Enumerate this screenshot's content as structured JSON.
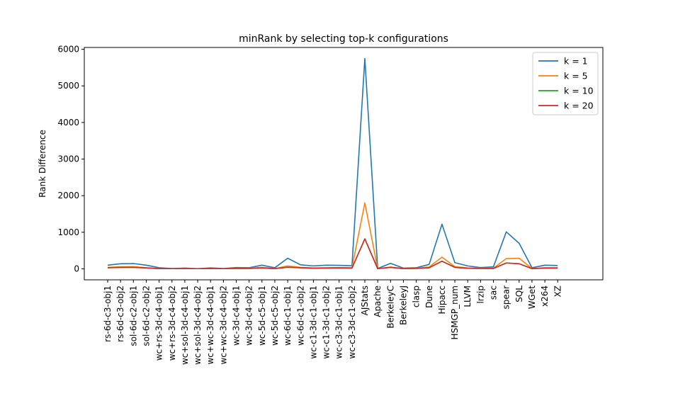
{
  "chart_data": {
    "type": "line",
    "title": "minRank by selecting top-k configurations",
    "xlabel": "",
    "ylabel": "Rank Difference",
    "ylim": [
      -300,
      6050
    ],
    "yticks": [
      0,
      1000,
      2000,
      3000,
      4000,
      5000,
      6000
    ],
    "grid": false,
    "legend_position": "top-right",
    "categories": [
      "rs-6d-c3-obj1",
      "rs-6d-c3-obj2",
      "sol-6d-c2-obj1",
      "sol-6d-c2-obj2",
      "wc+rs-3d-c4-obj1",
      "wc+rs-3d-c4-obj2",
      "wc+sol-3d-c4-obj1",
      "wc+sol-3d-c4-obj2",
      "wc+wc-3d-c4-obj1",
      "wc+wc-3d-c4-obj2",
      "wc-3d-c4-obj1",
      "wc-3d-c4-obj2",
      "wc-5d-c5-obj1",
      "wc-5d-c5-obj2",
      "wc-6d-c1-obj1",
      "wc-6d-c1-obj2",
      "wc-c1-3d-c1-obj1",
      "wc-c1-3d-c1-obj2",
      "wc-c3-3d-c1-obj1",
      "wc-c3-3d-c1-obj2",
      "AJStats",
      "Apache",
      "BerkeleyC",
      "BerkeleyJ",
      "clasp",
      "Dune",
      "Hipacc",
      "HSMGP_num",
      "LLVM",
      "lrzip",
      "sac",
      "spear",
      "SQL",
      "WGet",
      "x264",
      "XZ"
    ],
    "series": [
      {
        "name": "k = 1",
        "color": "#1f77b4",
        "values": [
          100,
          140,
          145,
          100,
          30,
          10,
          20,
          5,
          25,
          10,
          35,
          30,
          100,
          30,
          290,
          110,
          80,
          100,
          95,
          85,
          5750,
          10,
          150,
          20,
          30,
          120,
          1220,
          170,
          80,
          35,
          55,
          1010,
          700,
          30,
          100,
          90
        ]
      },
      {
        "name": "k = 5",
        "color": "#ff7f0e",
        "values": [
          40,
          55,
          60,
          30,
          10,
          5,
          10,
          5,
          10,
          5,
          15,
          15,
          40,
          10,
          80,
          40,
          25,
          30,
          35,
          30,
          1800,
          5,
          50,
          10,
          15,
          50,
          320,
          60,
          25,
          15,
          20,
          280,
          290,
          10,
          30,
          30
        ]
      },
      {
        "name": "k = 10",
        "color": "#2ca02c",
        "values": [
          30,
          40,
          40,
          25,
          5,
          5,
          5,
          5,
          10,
          5,
          10,
          10,
          25,
          5,
          45,
          30,
          15,
          20,
          25,
          20,
          820,
          5,
          40,
          5,
          10,
          30,
          210,
          40,
          15,
          10,
          10,
          160,
          140,
          5,
          20,
          20
        ]
      },
      {
        "name": "k = 20",
        "color": "#d62728",
        "values": [
          30,
          40,
          40,
          25,
          5,
          5,
          5,
          5,
          10,
          5,
          10,
          10,
          25,
          5,
          45,
          30,
          15,
          20,
          25,
          20,
          820,
          5,
          40,
          5,
          10,
          30,
          210,
          40,
          15,
          10,
          10,
          160,
          140,
          5,
          20,
          20
        ]
      }
    ]
  }
}
